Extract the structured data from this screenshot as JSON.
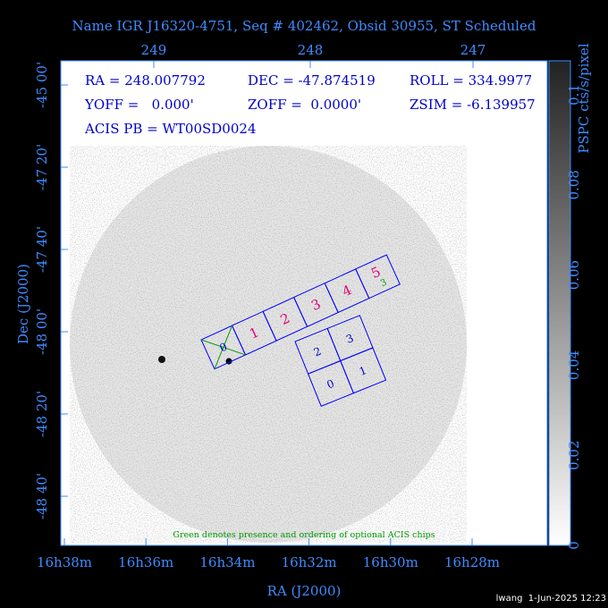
{
  "header": {
    "title": "Name IGR J16320-4751, Seq # 402462, Obsid 30955, ST Scheduled"
  },
  "axes": {
    "top_ticks": [
      "249",
      "248",
      "247"
    ],
    "left_ticks": [
      "-45 00'",
      "-47 20'",
      "-47 40'",
      "-48 00'",
      "-48 20'",
      "-48 40'"
    ],
    "bottom_ticks": [
      "16h38m",
      "16h36m",
      "16h34m",
      "16h32m",
      "16h30m",
      "16h28m"
    ],
    "x_label": "RA (J2000)",
    "y_label": "Dec (J2000)"
  },
  "info": {
    "ra": "RA = 248.007792",
    "dec": "DEC = -47.874519",
    "roll": "ROLL = 334.9977",
    "yoff": "YOFF =   0.000'",
    "zoff": "ZOFF =  0.0000'",
    "zsim": "ZSIM = -6.139957",
    "acis_pb": "ACIS PB = WT00SD0024"
  },
  "chips": {
    "s_array": [
      "0",
      "1",
      "2",
      "3",
      "4",
      "5"
    ],
    "i_array": [
      "2",
      "3",
      "0",
      "1"
    ],
    "optional": "3"
  },
  "note": "Green denotes presence and ordering of optional ACIS chips",
  "colorbar": {
    "label": "PSPC cts/s/pixel",
    "ticks": [
      "0",
      "0.02",
      "0.04",
      "0.06",
      "0.08",
      "0.1"
    ]
  },
  "footer": "lwang  1-Jun-2025 12:23"
}
